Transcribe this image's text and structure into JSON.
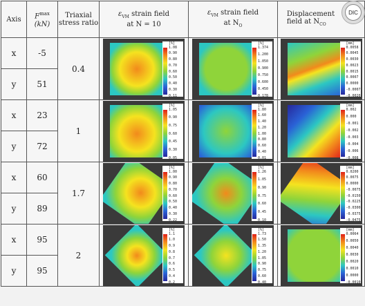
{
  "headers": {
    "axis": "Axis",
    "force_sym": "F",
    "force_sup": "max",
    "force_unit": "(kN)",
    "ratio": "Triaxial stress ratio",
    "col1_a": "ε",
    "col1_sub": "VM",
    "col1_b": " strain field",
    "col1_c": "at N = 10",
    "col2_a": "ε",
    "col2_sub": "VM",
    "col2_b": " strain field",
    "col2_c": "at N",
    "col2_csub": "O",
    "col3_a": "Displacement",
    "col3_b": "field at N",
    "col3_bsub": "CO",
    "dic": "DIC"
  },
  "rows": [
    {
      "x": "x",
      "fx": "-5",
      "y": "y",
      "fy": "51",
      "ratio": "0.4",
      "s1": {
        "unit": "[%]",
        "ticks": [
          "1.08",
          "0.90",
          "0.80",
          "0.70",
          "0.60",
          "0.50",
          "0.40",
          "0.30",
          "0.11"
        ]
      },
      "s2": {
        "unit": "[%]",
        "ticks": [
          "1.374",
          "1.200",
          "1.050",
          "0.900",
          "0.750",
          "0.600",
          "0.450",
          "0.178"
        ]
      },
      "s3": {
        "unit": "[mm]",
        "ticks": [
          "0.0058",
          "0.0045",
          "0.0030",
          "0.0023",
          "0.0015",
          "0.0007",
          "0.0000",
          "-0.0007",
          "-0.0020"
        ]
      }
    },
    {
      "x": "x",
      "fx": "23",
      "y": "y",
      "fy": "72",
      "ratio": "1",
      "s1": {
        "unit": "[%]",
        "ticks": [
          "1.05",
          "0.90",
          "0.75",
          "0.60",
          "0.45",
          "0.30",
          "0.05"
        ]
      },
      "s2": {
        "unit": "[%]",
        "ticks": [
          "1.80",
          "1.60",
          "1.40",
          "1.20",
          "1.00",
          "0.80",
          "0.60",
          "0.40",
          "0.01"
        ]
      },
      "s3": {
        "unit": "[mm]",
        "ticks": [
          "0.002",
          "0.000",
          "-0.001",
          "-0.002",
          "-0.003",
          "-0.004",
          "-0.006",
          "-0.008"
        ]
      }
    },
    {
      "x": "x",
      "fx": "60",
      "y": "y",
      "fy": "89",
      "ratio": "1.7",
      "s1": {
        "unit": "[%]",
        "ticks": [
          "1.00",
          "0.90",
          "0.80",
          "0.70",
          "0.60",
          "0.50",
          "0.40",
          "0.30",
          "0.22"
        ]
      },
      "s2": {
        "unit": "[%]",
        "ticks": [
          "1.26",
          "1.05",
          "0.90",
          "0.75",
          "0.60",
          "0.45",
          "0.10"
        ]
      },
      "s3": {
        "unit": "[mm]",
        "ticks": [
          "0.0200",
          "0.0075",
          "0.0000",
          "-0.0075",
          "-0.0150",
          "-0.0225",
          "-0.0300",
          "-0.0375",
          "-0.0475"
        ]
      }
    },
    {
      "x": "x",
      "fx": "95",
      "y": "y",
      "fy": "95",
      "ratio": "2",
      "s1": {
        "unit": "[%]",
        "ticks": [
          "1.1",
          "1.0",
          "0.9",
          "0.8",
          "0.7",
          "0.6",
          "0.5",
          "0.4",
          "0.2"
        ]
      },
      "s2": {
        "unit": "[%]",
        "ticks": [
          "1.73",
          "1.50",
          "1.35",
          "1.20",
          "1.05",
          "0.90",
          "0.75",
          "0.60",
          "0.40"
        ]
      },
      "s3": {
        "unit": "[mm]",
        "ticks": [
          "0.0064",
          "0.0050",
          "0.0040",
          "0.0030",
          "0.0020",
          "0.0010",
          "0.0000",
          "-0.0010"
        ]
      }
    }
  ],
  "colors": {
    "red": "#e0201a",
    "orange": "#f28a1c",
    "yellow": "#f5e31f",
    "green": "#8fd43a",
    "cyan": "#2cc7c2",
    "blue": "#2a62d6",
    "navy": "#27289c"
  }
}
